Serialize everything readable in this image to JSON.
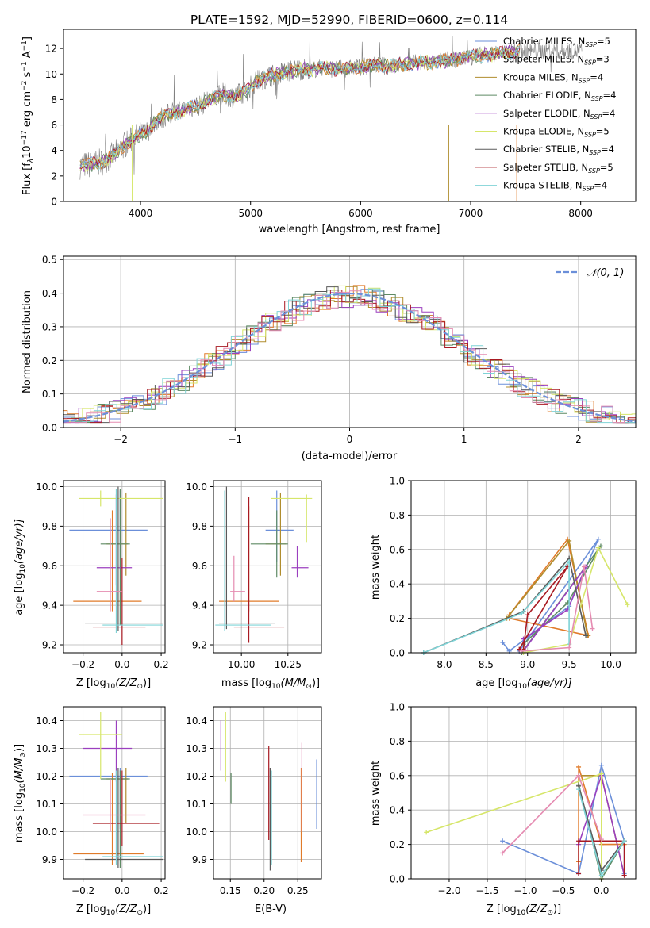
{
  "colors": [
    "#6b8fd9",
    "#e07b2a",
    "#b08d2e",
    "#5e8a64",
    "#9b3fbf",
    "#d6e66a",
    "#5a5a5a",
    "#a81a22",
    "#7fd3d6",
    "#e58bb1"
  ],
  "panels": {
    "spectrum": {
      "title": "PLATE=1592, MJD=52990, FIBERID=0600, z=0.114",
      "xlabel": "wavelength [Angstrom, rest frame]",
      "ylabel_main": "Flux [f",
      "ylabel_sub": "λ",
      "ylabel_rest": "10",
      "ylabel_exp": "−17",
      "ylabel_units": " erg cm",
      "ylabel_exp2": "−2",
      "ylabel_s": " s",
      "ylabel_exp3": "−1",
      "ylabel_end": " A",
      "ylabel_exp4": "−1",
      "ylabel_close": "]",
      "xticks": [
        "4000",
        "5000",
        "6000",
        "7000",
        "8000"
      ],
      "yticks": [
        "0",
        "2",
        "4",
        "6",
        "8",
        "10",
        "12"
      ],
      "legend": [
        {
          "name": "Chabrier MILES, N",
          "sub": "SSP",
          "val": "=5"
        },
        {
          "name": "Salpeter MILES, N",
          "sub": "SSP",
          "val": "=3"
        },
        {
          "name": "Kroupa MILES, N",
          "sub": "SSP",
          "val": "=4"
        },
        {
          "name": "Chabrier ELODIE, N",
          "sub": "SSP",
          "val": "=4"
        },
        {
          "name": "Salpeter ELODIE, N",
          "sub": "SSP",
          "val": "=4"
        },
        {
          "name": "Kroupa ELODIE, N",
          "sub": "SSP",
          "val": "=5"
        },
        {
          "name": "Chabrier STELIB, N",
          "sub": "SSP",
          "val": "=4"
        },
        {
          "name": "Salpeter STELIB, N",
          "sub": "SSP",
          "val": "=5"
        },
        {
          "name": "Kroupa STELIB, N",
          "sub": "SSP",
          "val": "=4"
        }
      ]
    },
    "hist": {
      "xlabel": "(data-model)/error",
      "ylabel": "Normed distribution",
      "xticks": [
        "−2",
        "−1",
        "0",
        "1",
        "2"
      ],
      "yticks": [
        "0.0",
        "0.1",
        "0.2",
        "0.3",
        "0.4",
        "0.5"
      ],
      "legend": "𝒩(0, 1)"
    },
    "p3": {
      "xlabel": "Z [log",
      "xsub": "10",
      "xrest": "(Z/Z",
      "xsun": "⊙",
      "xclose": ")]",
      "ylabel": "age  [log",
      "ysub": "10",
      "yrest": "(age/yr)]",
      "xticks": [
        "−0.2",
        "0.0",
        "0.2"
      ],
      "yticks": [
        "9.2",
        "9.4",
        "9.6",
        "9.8",
        "10.0"
      ]
    },
    "p4": {
      "xlabel": "mass [log",
      "xsub": "10",
      "xrest": "(M/M",
      "xsun": "⊙",
      "xclose": ")]",
      "xticks": [
        "10.00",
        "10.25"
      ],
      "yticks": [
        "9.2",
        "9.4",
        "9.6",
        "9.8",
        "10.0"
      ]
    },
    "p5": {
      "xlabel": "age  [log",
      "xsub": "10",
      "xrest": "(age/yr)]",
      "ylabel": "mass weight",
      "xticks": [
        "8.0",
        "8.5",
        "9.0",
        "9.5",
        "10.0"
      ],
      "yticks": [
        "0.0",
        "0.2",
        "0.4",
        "0.6",
        "0.8",
        "1.0"
      ]
    },
    "p6": {
      "xlabel": "Z [log",
      "xsub": "10",
      "xrest": "(Z/Z",
      "xsun": "⊙",
      "xclose": ")]",
      "ylabel": "mass [log",
      "ysub": "10",
      "yrest": "(M/M",
      "ysun": "⊙",
      "yclose": ")]",
      "xticks": [
        "−0.2",
        "0.0",
        "0.2"
      ],
      "yticks": [
        "9.9",
        "10.0",
        "10.1",
        "10.2",
        "10.3",
        "10.4"
      ]
    },
    "p7": {
      "xlabel": "E(B-V)",
      "xticks": [
        "0.15",
        "0.20",
        "0.25"
      ],
      "yticks": [
        "9.9",
        "10.0",
        "10.1",
        "10.2",
        "10.3",
        "10.4"
      ]
    },
    "p8": {
      "xlabel": "Z [log",
      "xsub": "10",
      "xrest": "(Z/Z",
      "xsun": "⊙",
      "xclose": ")]",
      "ylabel": "mass weight",
      "xticks": [
        "−2.0",
        "−1.5",
        "−1.0",
        "−0.5",
        "0.0"
      ],
      "yticks": [
        "0.0",
        "0.2",
        "0.4",
        "0.6",
        "0.8",
        "1.0"
      ]
    }
  },
  "chart_data": [
    {
      "type": "line",
      "title": "PLATE=1592, MJD=52990, FIBERID=0600, z=0.114",
      "xlabel": "wavelength [Angstrom, rest frame]",
      "xlim": [
        3300,
        8500
      ],
      "ylim": [
        0,
        13.5
      ],
      "x": [
        3450,
        3550,
        3650,
        3750,
        3850,
        3950,
        4050,
        4150,
        4250,
        4350,
        4450,
        4550,
        4650,
        4750,
        4850,
        4950,
        5050,
        5150,
        5250,
        5350,
        5450,
        5550,
        5650,
        5750,
        5850,
        5950,
        6050,
        6150,
        6250,
        6350,
        6450,
        6550,
        6650,
        6750,
        6850,
        6950,
        7050,
        7150,
        7250,
        7350,
        7450
      ],
      "model": [
        2.8,
        2.9,
        3.1,
        3.6,
        4.4,
        5.0,
        5.4,
        6.4,
        6.8,
        7.0,
        7.4,
        7.6,
        8.0,
        8.4,
        8.2,
        8.6,
        9.4,
        9.8,
        10.0,
        10.2,
        10.4,
        10.3,
        10.5,
        10.4,
        10.4,
        10.5,
        10.6,
        10.7,
        10.6,
        10.7,
        10.8,
        10.9,
        10.9,
        11.0,
        11.1,
        11.3,
        11.4,
        11.5,
        11.6,
        11.7,
        11.8
      ]
    },
    {
      "type": "bar",
      "xlabel": "(data-model)/error",
      "ylabel": "Normed distribution",
      "xlim": [
        -2.5,
        2.5
      ],
      "ylim": [
        0,
        0.51
      ],
      "gaussian": "N(0,1)"
    },
    {
      "type": "scatter",
      "xlabel": "Z",
      "ylabel": "age",
      "xlim": [
        -0.3,
        0.22
      ],
      "ylim": [
        9.16,
        10.03
      ],
      "points": [
        {
          "x": -0.01,
          "y": 9.78,
          "xerr": 0.14,
          "yerr_lo": 0.2,
          "yerr_hi": 0.2
        },
        {
          "x": -0.05,
          "y": 9.42,
          "xerr": 0.2,
          "yerr_lo": 0.05,
          "yerr_hi": 0.46
        },
        {
          "x": -0.03,
          "y": 9.71,
          "xerr": 0.1,
          "yerr_lo": 0.05,
          "yerr_hi": 0.3
        },
        {
          "x": -0.02,
          "y": 9.59,
          "xerr": 0.1,
          "yerr_lo": 0.1,
          "yerr_hi": 0.3
        },
        {
          "x": -0.12,
          "y": 9.94,
          "xerr": 0.09,
          "yerr_lo": 0.05,
          "yerr_hi": 0.02
        },
        {
          "x": -0.02,
          "y": 9.31,
          "xerr": 0.16,
          "yerr_lo": 0.05,
          "yerr_hi": 0.68
        },
        {
          "x": 0.0,
          "y": 9.29,
          "xerr": 0.12,
          "yerr_lo": 0.08,
          "yerr_hi": 0.35
        },
        {
          "x": -0.1,
          "y": 9.31,
          "xerr": 0.3,
          "yerr_lo": 0.05,
          "yerr_hi": 0.5
        },
        {
          "x": -0.07,
          "y": 9.47,
          "xerr": 0.07,
          "yerr_lo": 0.1,
          "yerr_hi": 0.38
        }
      ]
    },
    {
      "type": "scatter",
      "xlabel": "mass",
      "xlim": [
        9.85,
        10.43
      ],
      "ylim": [
        9.16,
        10.03
      ]
    },
    {
      "type": "line",
      "xlabel": "age",
      "ylabel": "mass weight",
      "xlim": [
        7.6,
        10.3
      ],
      "ylim": [
        0,
        1
      ]
    },
    {
      "type": "scatter",
      "xlabel": "Z",
      "ylabel": "mass",
      "xlim": [
        -0.3,
        0.22
      ],
      "ylim": [
        9.83,
        10.45
      ]
    },
    {
      "type": "scatter",
      "xlabel": "E(B-V)",
      "xlim": [
        0.125,
        0.285
      ],
      "ylim": [
        9.83,
        10.45
      ]
    },
    {
      "type": "line",
      "xlabel": "Z",
      "ylabel": "mass weight",
      "xlim": [
        -2.5,
        0.45
      ],
      "ylim": [
        0,
        1
      ]
    }
  ]
}
